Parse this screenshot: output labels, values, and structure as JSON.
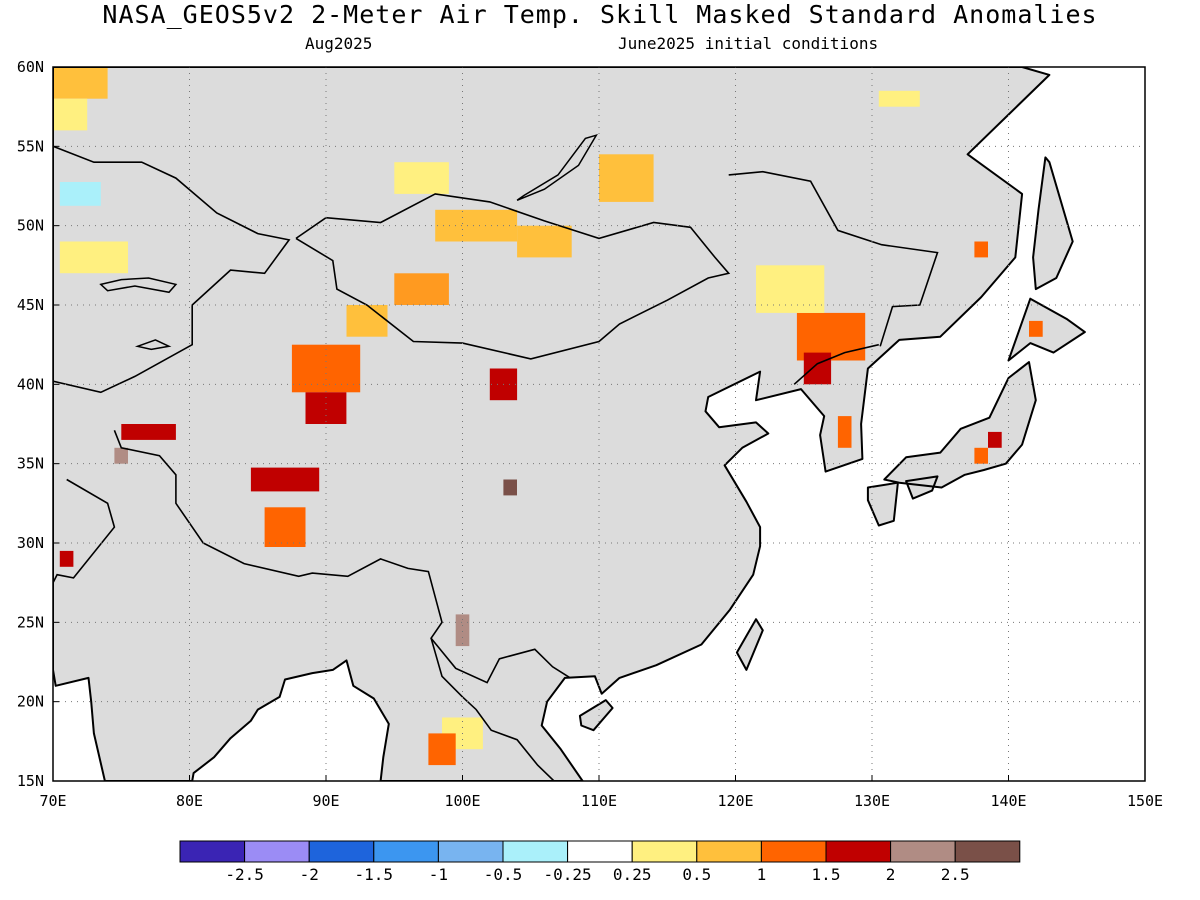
{
  "header": {
    "title": "NASA_GEOS5v2 2-Meter Air Temp. Skill Masked Standard Anomalies",
    "valid_month": "Aug2025",
    "init_conditions": "June2025 initial conditions"
  },
  "map": {
    "lon_range": [
      70,
      150
    ],
    "lat_range": [
      15,
      60
    ],
    "lon_ticks": [
      "70E",
      "80E",
      "90E",
      "100E",
      "110E",
      "120E",
      "130E",
      "140E",
      "150E"
    ],
    "lat_ticks": [
      "60N",
      "55N",
      "50N",
      "45N",
      "40N",
      "35N",
      "30N",
      "25N",
      "20N",
      "15N"
    ],
    "land_mask_color": "#dcdcdc",
    "coastline_color": "#000000",
    "grid": "dotted"
  },
  "anomaly_cells": [
    {
      "lon": 72,
      "lat": 59,
      "w": 4,
      "h": 2,
      "class": "0.5"
    },
    {
      "lon": 71,
      "lat": 57,
      "w": 3,
      "h": 2,
      "class": "0.25"
    },
    {
      "lon": 72,
      "lat": 52,
      "w": 3,
      "h": 1.5,
      "class": "-0.25"
    },
    {
      "lon": 73,
      "lat": 48,
      "w": 5,
      "h": 2,
      "class": "0.25"
    },
    {
      "lon": 90,
      "lat": 41,
      "w": 5,
      "h": 3,
      "class": "1"
    },
    {
      "lon": 90,
      "lat": 38.5,
      "w": 3,
      "h": 2,
      "class": "1.5"
    },
    {
      "lon": 93,
      "lat": 44,
      "w": 3,
      "h": 2,
      "class": "0.5"
    },
    {
      "lon": 97,
      "lat": 46,
      "w": 4,
      "h": 2,
      "class": "0.75"
    },
    {
      "lon": 101,
      "lat": 50,
      "w": 6,
      "h": 2,
      "class": "0.5"
    },
    {
      "lon": 106,
      "lat": 49,
      "w": 4,
      "h": 2,
      "class": "0.5"
    },
    {
      "lon": 112,
      "lat": 53,
      "w": 4,
      "h": 3,
      "class": "0.5"
    },
    {
      "lon": 97,
      "lat": 53,
      "w": 4,
      "h": 2,
      "class": "0.25"
    },
    {
      "lon": 103,
      "lat": 40,
      "w": 2,
      "h": 2,
      "class": "1.5"
    },
    {
      "lon": 87,
      "lat": 34,
      "w": 5,
      "h": 1.5,
      "class": "1.5"
    },
    {
      "lon": 87,
      "lat": 31,
      "w": 3,
      "h": 2.5,
      "class": "1"
    },
    {
      "lon": 77,
      "lat": 37,
      "w": 4,
      "h": 1,
      "class": "1.5"
    },
    {
      "lon": 127,
      "lat": 43,
      "w": 5,
      "h": 3,
      "class": "1"
    },
    {
      "lon": 126,
      "lat": 41,
      "w": 2,
      "h": 2,
      "class": "1.5"
    },
    {
      "lon": 124,
      "lat": 46,
      "w": 5,
      "h": 3,
      "class": "0.25"
    },
    {
      "lon": 128,
      "lat": 37,
      "w": 1,
      "h": 2,
      "class": "1"
    },
    {
      "lon": 132,
      "lat": 58,
      "w": 3,
      "h": 1,
      "class": "0.25"
    },
    {
      "lon": 100,
      "lat": 18,
      "w": 3,
      "h": 2,
      "class": "0.25"
    },
    {
      "lon": 98.5,
      "lat": 17,
      "w": 2,
      "h": 2,
      "class": "1"
    },
    {
      "lon": 139,
      "lat": 36.5,
      "w": 1,
      "h": 1,
      "class": "1.5"
    },
    {
      "lon": 138,
      "lat": 35.5,
      "w": 1,
      "h": 1,
      "class": "1"
    },
    {
      "lon": 142,
      "lat": 43.5,
      "w": 1,
      "h": 1,
      "class": "1"
    },
    {
      "lon": 138,
      "lat": 48.5,
      "w": 1,
      "h": 1,
      "class": "1"
    },
    {
      "lon": 75,
      "lat": 35.5,
      "w": 1,
      "h": 1,
      "class": "2.25"
    },
    {
      "lon": 103.5,
      "lat": 33.5,
      "w": 1,
      "h": 1,
      "class": "2.5"
    },
    {
      "lon": 100,
      "lat": 24.5,
      "w": 1,
      "h": 2,
      "class": "2.25"
    },
    {
      "lon": 71,
      "lat": 29,
      "w": 1,
      "h": 1,
      "class": "1.5"
    }
  ],
  "colorbar": {
    "colors": [
      "#3a24b4",
      "#9b8cf5",
      "#1e64dc",
      "#3c96f0",
      "#78b4f0",
      "#aaf0fa",
      "#ffffff",
      "#fff080",
      "#ffc03c",
      "#ff6400",
      "#c00000",
      "#b08c84",
      "#7a5048"
    ],
    "labels": [
      "-2.5",
      "-2",
      "-1.5",
      "-1",
      "-0.5",
      "-0.25",
      "0.25",
      "0.5",
      "1",
      "1.5",
      "2",
      "2.5"
    ]
  }
}
